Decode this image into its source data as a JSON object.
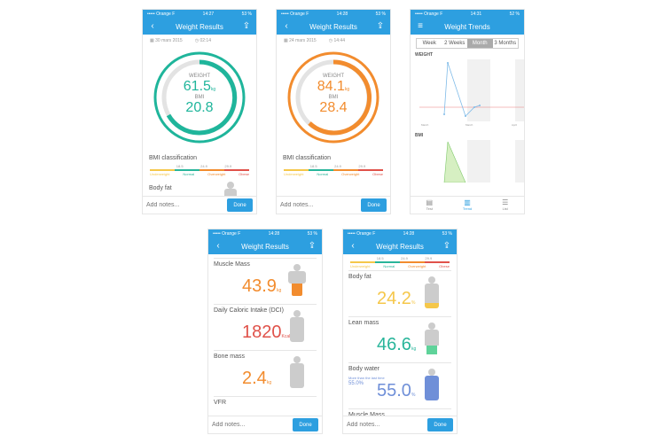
{
  "colors": {
    "accent": "#2d9fe0",
    "teal": "#1fb59b",
    "orange": "#f28c2e",
    "bmi_under": "#f5c74a",
    "bmi_normal": "#28b59a",
    "bmi_over": "#f28c2e",
    "bmi_obese": "#e0524a"
  },
  "screen1": {
    "status": {
      "carrier": "••••• Orange F",
      "time": "14:27",
      "battery": "53 %"
    },
    "title": "Weight Results",
    "date": "30 mars 2015",
    "clock": "02:14",
    "weight_label": "WEIGHT",
    "weight_value": "61.5",
    "weight_unit": "kg",
    "bmi_label": "BMI",
    "bmi_value": "20.8",
    "bmi_section": "BMI classification",
    "bmi_nums": [
      "18.5",
      "24.9",
      "29.9"
    ],
    "bmi_cats": [
      "Underweight",
      "Normal",
      "Overweight",
      "Obese"
    ],
    "body_fat": "Body fat",
    "notes_placeholder": "Add notes...",
    "done": "Done"
  },
  "screen2": {
    "status": {
      "carrier": "••••• Orange F",
      "time": "14:28",
      "battery": "53 %"
    },
    "title": "Weight Results",
    "date": "24 mars 2015",
    "clock": "14:44",
    "weight_label": "WEIGHT",
    "weight_value": "84.1",
    "weight_unit": "kg",
    "bmi_label": "BMI",
    "bmi_value": "28.4",
    "bmi_section": "BMI classification",
    "bmi_nums": [
      "18.5",
      "24.9",
      "29.9"
    ],
    "bmi_cats": [
      "Underweight",
      "Normal",
      "Overweight",
      "Obese"
    ],
    "notes_placeholder": "Add notes...",
    "done": "Done"
  },
  "screen3": {
    "status": {
      "carrier": "••••• Orange F",
      "time": "14:31",
      "battery": "52 %"
    },
    "title": "Weight Trends",
    "segments": [
      "Week",
      "2 Weeks",
      "Month",
      "3 Months"
    ],
    "active_segment": "Month",
    "weight_chart_label": "WEIGHT",
    "bmi_chart_label": "BMI",
    "x_labels": [
      "March",
      "March",
      "April"
    ],
    "tabs": [
      "Test",
      "Trend",
      "List"
    ]
  },
  "screen4": {
    "status": {
      "carrier": "••••• Orange F",
      "time": "14:28",
      "battery": "53 %"
    },
    "title": "Weight Results",
    "metrics": [
      {
        "name": "Muscle Mass",
        "value": "43.9",
        "unit": "kg"
      },
      {
        "name": "Daily Caloric Intake (DCI)",
        "value": "1820",
        "unit": "Kcal"
      },
      {
        "name": "Bone mass",
        "value": "2.4",
        "unit": "kg"
      },
      {
        "name": "VFR",
        "value": "",
        "unit": ""
      }
    ],
    "notes_placeholder": "Add notes...",
    "done": "Done"
  },
  "screen5": {
    "status": {
      "carrier": "••••• Orange F",
      "time": "14:28",
      "battery": "53 %"
    },
    "title": "Weight Results",
    "bmi_nums": [
      "18.5",
      "24.9",
      "29.9"
    ],
    "bmi_cats": [
      "Underweight",
      "Normal",
      "Overweight",
      "Obese"
    ],
    "metrics": [
      {
        "name": "Body fat",
        "value": "24.2",
        "unit": "%"
      },
      {
        "name": "Lean mass",
        "value": "46.6",
        "unit": "kg"
      },
      {
        "name": "Body water",
        "value": "55.0",
        "unit": "%"
      },
      {
        "name": "Muscle Mass",
        "value": "",
        "unit": ""
      }
    ],
    "water_note": "More than the last time",
    "water_prev": "55.0%",
    "notes_placeholder": "Add notes...",
    "done": "Done"
  }
}
